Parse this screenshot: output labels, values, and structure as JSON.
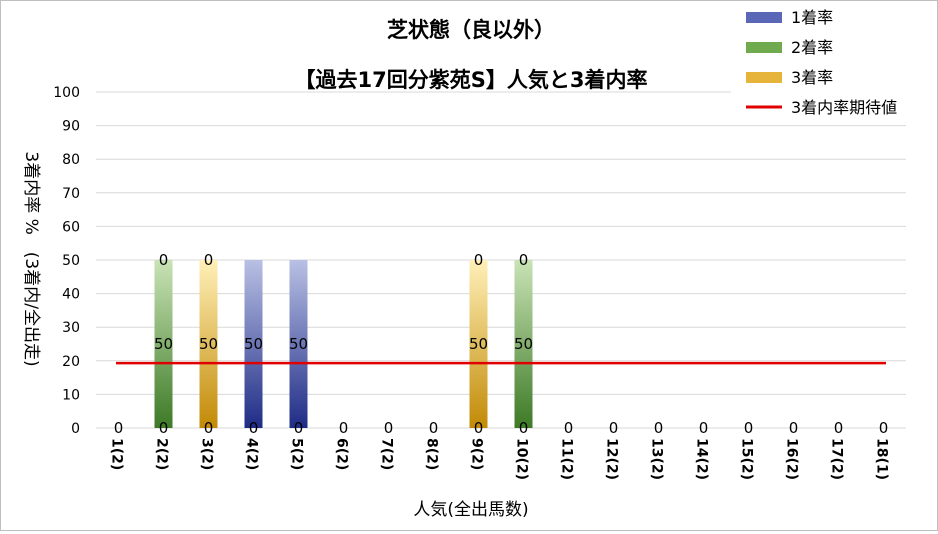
{
  "chart_data": {
    "type": "bar",
    "title_line1": "芝状態（良以外）",
    "title_line2": "【過去17回分紫苑S】人気と3着内率",
    "xlabel": "人気(全出馬数)",
    "ylabel": "3着内率 %　(3着内/全出走)",
    "ylim": [
      0,
      100
    ],
    "yticks": [
      0,
      10,
      20,
      30,
      40,
      50,
      60,
      70,
      80,
      90,
      100
    ],
    "categories": [
      "1(2)",
      "2(2)",
      "3(2)",
      "4(2)",
      "5(2)",
      "6(2)",
      "7(2)",
      "8(2)",
      "9(2)",
      "10(2)",
      "11(2)",
      "12(2)",
      "13(2)",
      "14(2)",
      "15(2)",
      "16(2)",
      "17(2)",
      "18(1)"
    ],
    "series": [
      {
        "name": "1着率",
        "values": [
          0,
          0,
          0,
          50,
          50,
          0,
          0,
          0,
          0,
          0,
          0,
          0,
          0,
          0,
          0,
          0,
          0,
          0
        ],
        "color": "#3b4a9e"
      },
      {
        "name": "2着率",
        "values": [
          0,
          50,
          0,
          0,
          0,
          0,
          0,
          0,
          0,
          50,
          0,
          0,
          0,
          0,
          0,
          0,
          0,
          0
        ],
        "color": "#5a9a3c"
      },
      {
        "name": "3着率",
        "values": [
          0,
          0,
          50,
          0,
          0,
          0,
          0,
          0,
          50,
          0,
          0,
          0,
          0,
          0,
          0,
          0,
          0,
          0
        ],
        "color": "#d9a21a"
      }
    ],
    "bottom_labels": [
      "0",
      "0",
      "0",
      "0",
      "0",
      "0",
      "0",
      "0",
      "0",
      "0",
      "0",
      "0",
      "0",
      "0",
      "0",
      "0",
      "0",
      "0"
    ],
    "mid_labels": [
      "",
      "50",
      "50",
      "50",
      "50",
      "",
      "",
      "",
      "50",
      "50",
      "",
      "",
      "",
      "",
      "",
      "",
      "",
      ""
    ],
    "top_labels": [
      "",
      "0",
      "0",
      "",
      "",
      "",
      "",
      "",
      "0",
      "0",
      "",
      "",
      "",
      "",
      "",
      "",
      "",
      ""
    ],
    "expected_line": {
      "name": "3着内率期待値",
      "value": 19.3,
      "color": "#e00000"
    },
    "grid": true,
    "legend_position": "top-right"
  }
}
